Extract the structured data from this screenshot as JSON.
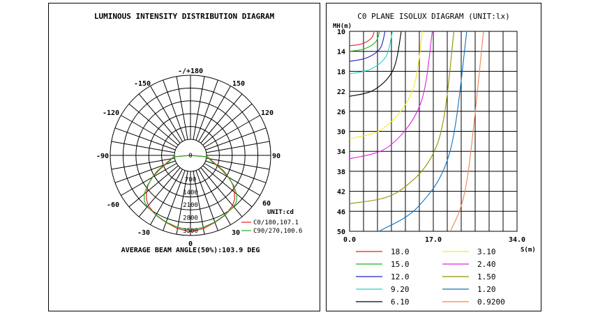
{
  "left": {
    "title": "LUMINOUS INTENSITY DISTRIBUTION DIAGRAM",
    "unit_label": "UNIT:cd",
    "beam_angle_text": "AVERAGE BEAM ANGLE(50%):103.9 DEG",
    "angle_labels": {
      "top": "-/+180",
      "top_left": "-150",
      "top_right": "150",
      "upper_left": "-120",
      "upper_right": "120",
      "left": "-90",
      "right": "90",
      "lower_left": "-60",
      "lower_right": "60",
      "bottom_left": "-30",
      "bottom_right": "30",
      "bottom": "0"
    },
    "radial_labels": [
      "0",
      "700",
      "1400",
      "2100",
      "2800",
      "3500"
    ]
  },
  "right": {
    "title": "C0 PLANE ISOLUX DIAGRAM (UNIT:lx)",
    "y_axis_label": "MH(m)",
    "x_axis_label": "S(m)",
    "y_ticks": [
      "10",
      "14",
      "18",
      "22",
      "26",
      "30",
      "34",
      "38",
      "42",
      "46",
      "50"
    ],
    "x_ticks": [
      "0.0",
      "17.0",
      "34.0"
    ]
  },
  "chart_data": [
    {
      "type": "polar",
      "title": "LUMINOUS INTENSITY DISTRIBUTION DIAGRAM",
      "unit": "cd",
      "r_max": 3500,
      "r_ticks": [
        0,
        700,
        1400,
        2100,
        2800,
        3500
      ],
      "angle_ticks_deg": [
        0,
        30,
        60,
        90,
        120,
        150,
        180
      ],
      "series": [
        {
          "name": "C0/180,107.1",
          "color": "#e02020",
          "angles_deg": [
            0,
            10,
            20,
            30,
            40,
            45,
            50,
            55,
            60,
            65,
            70,
            75,
            80,
            85,
            90
          ],
          "values": [
            3300,
            3180,
            3020,
            2900,
            2700,
            2520,
            2250,
            1950,
            1550,
            1100,
            650,
            360,
            180,
            60,
            0
          ]
        },
        {
          "name": "C90/270,100.6",
          "color": "#20b020",
          "angles_deg": [
            0,
            10,
            20,
            30,
            40,
            45,
            50,
            55,
            60,
            65,
            70,
            75,
            80,
            85,
            90
          ],
          "values": [
            3200,
            3120,
            3000,
            2880,
            2780,
            2680,
            2420,
            2000,
            1500,
            1000,
            560,
            300,
            140,
            50,
            0
          ]
        }
      ],
      "annotation": "AVERAGE BEAM ANGLE(50%):103.9 DEG"
    },
    {
      "type": "line",
      "title": "C0 PLANE ISOLUX DIAGRAM (UNIT:lx)",
      "xlabel": "S(m)",
      "ylabel": "MH(m)",
      "xlim": [
        0,
        34
      ],
      "ylim": [
        10,
        50
      ],
      "y_inverted": true,
      "grid": true,
      "series": [
        {
          "name": "18.0",
          "color": "#e02020",
          "points": [
            [
              0,
              12.9
            ],
            [
              2.5,
              12.5
            ],
            [
              4.4,
              11.4
            ],
            [
              5.0,
              10
            ]
          ]
        },
        {
          "name": "15.0",
          "color": "#20b020",
          "points": [
            [
              0,
              14.0
            ],
            [
              3.0,
              13.5
            ],
            [
              5.3,
              12.1
            ],
            [
              6.1,
              10
            ]
          ]
        },
        {
          "name": "12.0",
          "color": "#2020c0",
          "points": [
            [
              0,
              16.0
            ],
            [
              3.5,
              15.3
            ],
            [
              6.2,
              13.4
            ],
            [
              7.2,
              10
            ]
          ]
        },
        {
          "name": "9.20",
          "color": "#20d0d0",
          "points": [
            [
              0,
              18.5
            ],
            [
              4.2,
              17.6
            ],
            [
              7.4,
              15.0
            ],
            [
              8.7,
              10
            ]
          ]
        },
        {
          "name": "6.10",
          "color": "#000000",
          "points": [
            [
              0,
              23.0
            ],
            [
              5.0,
              21.7
            ],
            [
              8.9,
              17.6
            ],
            [
              10.5,
              10
            ]
          ]
        },
        {
          "name": "3.10",
          "color": "#f0f020",
          "points": [
            [
              0,
              31.5
            ],
            [
              7.0,
              29.3
            ],
            [
              12.7,
              22.0
            ],
            [
              14.8,
              10
            ]
          ]
        },
        {
          "name": "2.40",
          "color": "#e020e0",
          "points": [
            [
              0,
              35.5
            ],
            [
              8.0,
              33.0
            ],
            [
              14.4,
              24.5
            ],
            [
              16.8,
              10
            ]
          ]
        },
        {
          "name": "1.50",
          "color": "#909000",
          "points": [
            [
              0,
              44.5
            ],
            [
              10.0,
              42.0
            ],
            [
              18.0,
              32.0
            ],
            [
              21.2,
              10
            ]
          ]
        },
        {
          "name": "1.20",
          "color": "#1070c0",
          "points": [
            [
              6.0,
              50
            ],
            [
              14.0,
              45.0
            ],
            [
              20.4,
              34.0
            ],
            [
              23.8,
              10
            ]
          ]
        },
        {
          "name": "0.9200",
          "color": "#f08050",
          "points": [
            [
              20.5,
              50
            ],
            [
              23.8,
              40.0
            ],
            [
              27.2,
              10
            ]
          ]
        }
      ]
    }
  ]
}
